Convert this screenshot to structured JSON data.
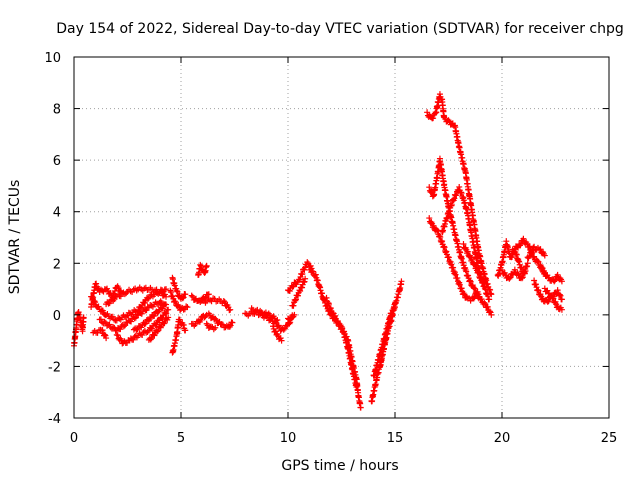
{
  "chart_data": {
    "type": "scatter",
    "title": "Day 154 of 2022, Sidereal Day-to-day VTEC variation (SDTVAR) for receiver chpg",
    "xlabel": "GPS time / hours",
    "ylabel": "SDTVAR / TECUs",
    "xlim": [
      0,
      25
    ],
    "ylim": [
      -4,
      10
    ],
    "xticks": [
      0,
      5,
      10,
      15,
      20,
      25
    ],
    "yticks": [
      -4,
      -2,
      0,
      2,
      4,
      6,
      8,
      10
    ],
    "grid": true,
    "marker": "+",
    "color": "#ff0000",
    "tracks": [
      [
        [
          0.0,
          -1.2
        ],
        [
          0.1,
          -0.5
        ],
        [
          0.2,
          0.1
        ],
        [
          0.3,
          -0.2
        ],
        [
          0.4,
          -0.6
        ],
        [
          0.45,
          -0.1
        ]
      ],
      [
        [
          0.8,
          0.3
        ],
        [
          1.0,
          1.2
        ],
        [
          1.2,
          0.9
        ],
        [
          1.5,
          1.0
        ],
        [
          1.8,
          0.7
        ],
        [
          2.0,
          1.1
        ],
        [
          2.2,
          0.9
        ]
      ],
      [
        [
          0.8,
          0.7
        ],
        [
          1.1,
          0.3
        ],
        [
          1.5,
          0.0
        ],
        [
          2.0,
          -0.2
        ],
        [
          2.5,
          0.0
        ],
        [
          3.0,
          0.2
        ],
        [
          3.5,
          0.7
        ],
        [
          4.0,
          0.9
        ],
        [
          4.3,
          0.7
        ]
      ],
      [
        [
          0.9,
          -0.7
        ],
        [
          1.3,
          -0.6
        ],
        [
          1.5,
          -0.9
        ]
      ],
      [
        [
          1.5,
          0.4
        ],
        [
          2.0,
          0.7
        ],
        [
          2.5,
          0.9
        ],
        [
          3.0,
          1.0
        ],
        [
          3.5,
          1.0
        ],
        [
          4.0,
          0.9
        ],
        [
          4.3,
          1.0
        ]
      ],
      [
        [
          1.2,
          -0.2
        ],
        [
          1.6,
          -0.4
        ],
        [
          2.0,
          -0.6
        ],
        [
          2.5,
          -0.3
        ],
        [
          3.0,
          0.0
        ],
        [
          3.5,
          0.3
        ],
        [
          4.0,
          0.5
        ],
        [
          4.2,
          0.4
        ]
      ],
      [
        [
          2.0,
          -0.8
        ],
        [
          2.3,
          -1.1
        ],
        [
          2.6,
          -1.0
        ],
        [
          3.0,
          -0.8
        ],
        [
          3.5,
          -0.6
        ],
        [
          4.0,
          -0.2
        ],
        [
          4.4,
          0.2
        ]
      ],
      [
        [
          2.8,
          -0.6
        ],
        [
          3.2,
          -0.4
        ],
        [
          3.6,
          -0.1
        ],
        [
          4.0,
          0.2
        ],
        [
          4.3,
          0.4
        ]
      ],
      [
        [
          3.5,
          -1.0
        ],
        [
          3.8,
          -0.7
        ],
        [
          4.1,
          -0.4
        ],
        [
          4.4,
          -0.1
        ]
      ],
      [
        [
          4.6,
          -1.5
        ],
        [
          4.8,
          -0.8
        ],
        [
          4.9,
          -0.2
        ],
        [
          5.1,
          -0.4
        ],
        [
          5.2,
          -0.6
        ]
      ],
      [
        [
          4.6,
          1.4
        ],
        [
          4.8,
          0.9
        ],
        [
          5.0,
          0.6
        ],
        [
          5.2,
          0.8
        ]
      ],
      [
        [
          4.5,
          0.9
        ],
        [
          4.7,
          0.5
        ],
        [
          5.0,
          0.2
        ],
        [
          5.3,
          0.3
        ]
      ],
      [
        [
          5.8,
          1.5
        ],
        [
          5.9,
          1.9
        ],
        [
          6.1,
          1.6
        ],
        [
          6.2,
          1.9
        ]
      ],
      [
        [
          5.5,
          0.7
        ],
        [
          5.8,
          0.5
        ],
        [
          6.0,
          0.6
        ],
        [
          6.3,
          0.8
        ]
      ],
      [
        [
          5.5,
          -0.4
        ],
        [
          5.8,
          -0.3
        ],
        [
          6.0,
          -0.1
        ],
        [
          6.2,
          0.0
        ]
      ],
      [
        [
          6.0,
          0.5
        ],
        [
          6.5,
          0.6
        ],
        [
          7.0,
          0.5
        ],
        [
          7.3,
          0.2
        ]
      ],
      [
        [
          6.3,
          0.0
        ],
        [
          6.6,
          -0.2
        ],
        [
          6.9,
          -0.4
        ],
        [
          7.2,
          -0.5
        ],
        [
          7.4,
          -0.3
        ]
      ],
      [
        [
          6.2,
          -0.4
        ],
        [
          6.4,
          -0.5
        ],
        [
          6.6,
          -0.5
        ]
      ],
      [
        [
          8.0,
          0.0
        ],
        [
          8.5,
          0.1
        ],
        [
          9.0,
          -0.1
        ],
        [
          9.4,
          -0.3
        ],
        [
          9.7,
          -0.6
        ],
        [
          10.0,
          -0.4
        ],
        [
          10.2,
          -0.1
        ]
      ],
      [
        [
          8.3,
          0.2
        ],
        [
          8.7,
          0.1
        ],
        [
          9.1,
          0.0
        ],
        [
          9.5,
          -0.2
        ]
      ],
      [
        [
          9.3,
          -0.5
        ],
        [
          9.5,
          -0.8
        ],
        [
          9.7,
          -1.0
        ]
      ],
      [
        [
          10.0,
          0.9
        ],
        [
          10.3,
          1.2
        ],
        [
          10.5,
          1.3
        ],
        [
          10.7,
          1.7
        ],
        [
          10.9,
          2.0
        ],
        [
          11.1,
          1.8
        ]
      ],
      [
        [
          10.2,
          0.3
        ],
        [
          10.4,
          0.7
        ],
        [
          10.6,
          1.0
        ],
        [
          10.8,
          1.4
        ]
      ],
      [
        [
          10.0,
          -0.2
        ],
        [
          10.3,
          0.0
        ]
      ],
      [
        [
          11.0,
          1.8
        ],
        [
          11.3,
          1.5
        ],
        [
          11.5,
          1.0
        ],
        [
          11.7,
          0.5
        ],
        [
          12.0,
          0.0
        ],
        [
          12.3,
          -0.3
        ],
        [
          12.5,
          -0.5
        ],
        [
          12.8,
          -1.0
        ],
        [
          13.0,
          -1.8
        ],
        [
          13.2,
          -2.5
        ],
        [
          13.3,
          -3.2
        ],
        [
          13.4,
          -3.6
        ]
      ],
      [
        [
          11.8,
          0.6
        ],
        [
          12.0,
          0.2
        ],
        [
          12.2,
          -0.1
        ],
        [
          12.4,
          -0.4
        ],
        [
          12.6,
          -0.7
        ],
        [
          12.8,
          -1.3
        ],
        [
          13.0,
          -2.1
        ],
        [
          13.2,
          -2.8
        ]
      ],
      [
        [
          13.9,
          -3.4
        ],
        [
          14.0,
          -3.0
        ],
        [
          14.2,
          -2.3
        ],
        [
          14.4,
          -1.6
        ],
        [
          14.6,
          -0.8
        ],
        [
          14.8,
          -0.1
        ],
        [
          15.0,
          0.4
        ],
        [
          15.2,
          0.9
        ],
        [
          15.3,
          1.3
        ]
      ],
      [
        [
          14.0,
          -2.4
        ],
        [
          14.2,
          -1.8
        ],
        [
          14.4,
          -1.2
        ],
        [
          14.6,
          -0.6
        ],
        [
          14.8,
          0.0
        ],
        [
          15.0,
          0.3
        ]
      ],
      [
        [
          14.3,
          -2.0
        ],
        [
          14.5,
          -1.2
        ],
        [
          14.7,
          -0.5
        ],
        [
          14.9,
          0.0
        ]
      ],
      [
        [
          16.5,
          7.8
        ],
        [
          16.7,
          7.6
        ],
        [
          16.9,
          7.8
        ],
        [
          17.0,
          8.2
        ],
        [
          17.1,
          8.5
        ],
        [
          17.2,
          8.3
        ],
        [
          17.3,
          7.6
        ],
        [
          17.5,
          7.5
        ],
        [
          17.8,
          7.3
        ],
        [
          18.0,
          6.5
        ],
        [
          18.3,
          5.5
        ],
        [
          18.5,
          4.5
        ],
        [
          18.7,
          3.5
        ],
        [
          18.9,
          2.5
        ],
        [
          19.1,
          1.8
        ],
        [
          19.3,
          1.2
        ],
        [
          19.5,
          0.8
        ]
      ],
      [
        [
          16.6,
          3.7
        ],
        [
          16.8,
          3.4
        ],
        [
          17.0,
          3.2
        ],
        [
          17.2,
          2.8
        ],
        [
          17.4,
          2.4
        ],
        [
          17.6,
          2.0
        ],
        [
          17.8,
          1.6
        ],
        [
          18.0,
          1.2
        ],
        [
          18.2,
          0.8
        ],
        [
          18.4,
          0.6
        ],
        [
          18.6,
          0.6
        ],
        [
          18.8,
          0.8
        ],
        [
          19.0,
          0.6
        ],
        [
          19.3,
          0.3
        ],
        [
          19.5,
          0.0
        ]
      ],
      [
        [
          16.6,
          4.9
        ],
        [
          16.8,
          4.6
        ],
        [
          17.0,
          5.5
        ],
        [
          17.1,
          6.0
        ],
        [
          17.3,
          5.0
        ],
        [
          17.5,
          4.2
        ],
        [
          17.7,
          3.5
        ],
        [
          17.9,
          2.8
        ],
        [
          18.1,
          2.2
        ],
        [
          18.3,
          1.7
        ],
        [
          18.5,
          1.3
        ],
        [
          18.7,
          1.0
        ],
        [
          18.9,
          0.8
        ]
      ],
      [
        [
          17.2,
          3.2
        ],
        [
          17.4,
          3.7
        ],
        [
          17.6,
          4.2
        ],
        [
          17.8,
          4.6
        ],
        [
          18.0,
          4.9
        ],
        [
          18.2,
          4.5
        ],
        [
          18.4,
          3.9
        ],
        [
          18.6,
          3.0
        ],
        [
          18.8,
          2.2
        ],
        [
          19.0,
          1.5
        ],
        [
          19.2,
          1.0
        ],
        [
          19.4,
          0.6
        ]
      ],
      [
        [
          18.2,
          2.7
        ],
        [
          18.4,
          2.4
        ],
        [
          18.6,
          2.1
        ],
        [
          18.8,
          1.8
        ],
        [
          19.0,
          1.4
        ],
        [
          19.2,
          1.1
        ]
      ],
      [
        [
          19.8,
          1.5
        ],
        [
          20.0,
          2.0
        ],
        [
          20.1,
          2.4
        ],
        [
          20.2,
          2.8
        ],
        [
          20.4,
          2.2
        ],
        [
          20.6,
          2.5
        ],
        [
          20.8,
          2.0
        ],
        [
          21.0,
          1.6
        ],
        [
          21.2,
          2.0
        ]
      ],
      [
        [
          20.0,
          1.7
        ],
        [
          20.3,
          1.4
        ],
        [
          20.6,
          1.7
        ],
        [
          20.9,
          1.4
        ],
        [
          21.1,
          1.7
        ]
      ],
      [
        [
          20.5,
          2.5
        ],
        [
          20.8,
          2.7
        ],
        [
          21.0,
          2.9
        ],
        [
          21.3,
          2.6
        ],
        [
          21.5,
          2.2
        ],
        [
          21.7,
          2.0
        ],
        [
          22.0,
          1.6
        ]
      ],
      [
        [
          21.2,
          2.2
        ],
        [
          21.5,
          2.6
        ],
        [
          21.8,
          2.5
        ],
        [
          22.0,
          2.3
        ]
      ],
      [
        [
          21.5,
          1.3
        ],
        [
          21.7,
          0.9
        ],
        [
          21.9,
          0.6
        ],
        [
          22.1,
          0.5
        ],
        [
          22.3,
          0.7
        ],
        [
          22.6,
          0.9
        ],
        [
          22.8,
          0.6
        ]
      ],
      [
        [
          21.8,
          1.9
        ],
        [
          22.0,
          1.6
        ],
        [
          22.2,
          1.4
        ],
        [
          22.4,
          1.3
        ],
        [
          22.6,
          1.5
        ],
        [
          22.8,
          1.3
        ]
      ],
      [
        [
          22.0,
          1.0
        ],
        [
          22.2,
          0.8
        ],
        [
          22.4,
          0.6
        ],
        [
          22.6,
          0.3
        ],
        [
          22.8,
          0.2
        ]
      ]
    ]
  }
}
